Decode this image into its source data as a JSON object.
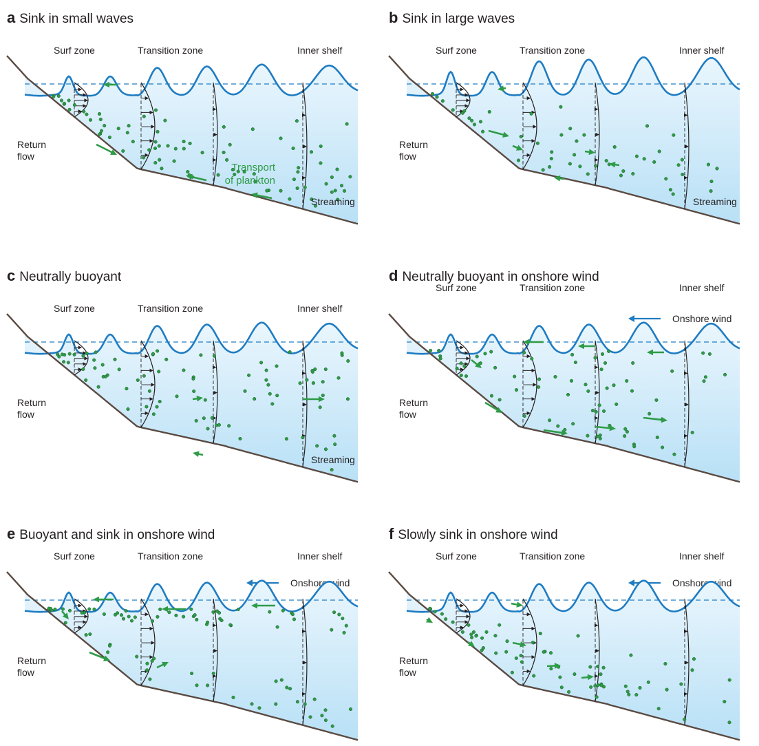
{
  "panels": [
    {
      "id": "a",
      "letter": "a",
      "title": "Sink in small waves",
      "zones": [
        "Surf zone",
        "Transition zone",
        "Inner shelf"
      ],
      "labels": {
        "return_flow": [
          "Return",
          "flow"
        ],
        "streaming": "Streaming",
        "transport": [
          "Transport",
          "of plankton"
        ]
      },
      "wind": null
    },
    {
      "id": "b",
      "letter": "b",
      "title": "Sink in large waves",
      "zones": [
        "Surf zone",
        "Transition zone",
        "Inner shelf"
      ],
      "labels": {
        "return_flow": [
          "Return",
          "flow"
        ],
        "streaming": "Streaming"
      },
      "wind": null
    },
    {
      "id": "c",
      "letter": "c",
      "title": "Neutrally buoyant",
      "zones": [
        "Surf zone",
        "Transition zone",
        "Inner shelf"
      ],
      "labels": {
        "return_flow": [
          "Return",
          "flow"
        ],
        "streaming": "Streaming"
      },
      "wind": null
    },
    {
      "id": "d",
      "letter": "d",
      "title": "Neutrally buoyant in onshore wind",
      "zones": [
        "Surf zone",
        "Transition zone",
        "Inner shelf"
      ],
      "labels": {
        "return_flow": [
          "Return",
          "flow"
        ]
      },
      "wind": "Onshore wind"
    },
    {
      "id": "e",
      "letter": "e",
      "title": "Buoyant and sink in onshore wind",
      "zones": [
        "Surf zone",
        "Transition zone",
        "Inner shelf"
      ],
      "labels": {
        "return_flow": [
          "Return",
          "flow"
        ]
      },
      "wind": "Onshore wind"
    },
    {
      "id": "f",
      "letter": "f",
      "title": "Slowly sink in onshore wind",
      "zones": [
        "Surf zone",
        "Transition zone",
        "Inner shelf"
      ],
      "labels": {
        "return_flow": [
          "Return",
          "flow"
        ]
      },
      "wind": "Onshore wind"
    }
  ],
  "colors": {
    "wave": "#1f7cc2",
    "water_top": "#eaf6fd",
    "water_bottom": "#b8e0f6",
    "seabed": "#5a4a42",
    "plankton": "#2e9b47",
    "plankton_edge": "#1b5e2b",
    "profile": "#231f20"
  }
}
